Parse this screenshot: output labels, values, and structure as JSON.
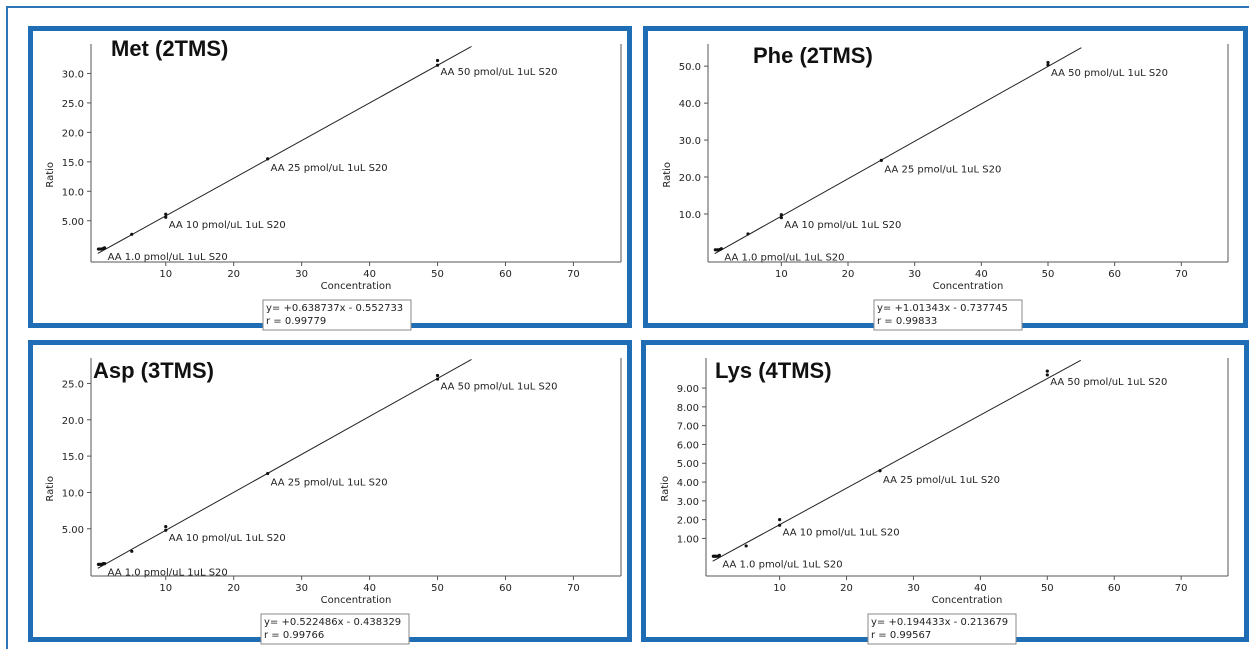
{
  "chart_data": [
    {
      "type": "scatter",
      "title": "Met (2TMS)",
      "xlabel": "Concentration",
      "ylabel": "Ratio",
      "xlim": [
        -1,
        77
      ],
      "ylim": [
        -2,
        35
      ],
      "xticks": [
        10,
        20,
        30,
        40,
        50,
        60,
        70
      ],
      "yticks": [
        5,
        10,
        15,
        20,
        25,
        30
      ],
      "ytick_labels": [
        "5.00",
        "10.0",
        "15.0",
        "20.0",
        "25.0",
        "30.0"
      ],
      "series": [
        {
          "x": [
            0.1,
            0.3,
            0.5,
            0.8,
            1.0,
            5.0,
            10.0,
            10.0,
            25.0,
            50.0,
            50.0
          ],
          "y": [
            0.2,
            0.2,
            0.2,
            0.3,
            0.4,
            2.7,
            5.6,
            6.1,
            15.5,
            31.4,
            32.2
          ]
        }
      ],
      "fit": {
        "slope": 0.638737,
        "intercept": -0.552733,
        "x_range": [
          0,
          55
        ]
      },
      "point_labels": [
        {
          "x": 1.0,
          "y": 0.4,
          "text": "AA 1.0 pmol/uL 1uL S20"
        },
        {
          "x": 10.0,
          "y": 5.8,
          "text": "AA 10 pmol/uL 1uL S20"
        },
        {
          "x": 25.0,
          "y": 15.5,
          "text": "AA 25 pmol/uL 1uL S20"
        },
        {
          "x": 50.0,
          "y": 31.8,
          "text": "AA 50 pmol/uL 1uL S20"
        }
      ],
      "equation": "y= +0.638737x - 0.552733",
      "r_value": "r = 0.99779"
    },
    {
      "type": "scatter",
      "title": "Phe (2TMS)",
      "xlabel": "Concentration",
      "ylabel": "Ratio",
      "xlim": [
        -1,
        77
      ],
      "ylim": [
        -3,
        56
      ],
      "xticks": [
        10,
        20,
        30,
        40,
        50,
        60,
        70
      ],
      "yticks": [
        10,
        20,
        30,
        40,
        50
      ],
      "ytick_labels": [
        "10.0",
        "20.0",
        "30.0",
        "40.0",
        "50.0"
      ],
      "series": [
        {
          "x": [
            0.1,
            0.3,
            0.5,
            0.8,
            1.0,
            5.0,
            10.0,
            10.0,
            25.0,
            50.0,
            50.0
          ],
          "y": [
            0.3,
            0.3,
            0.3,
            0.4,
            0.6,
            4.6,
            9.0,
            9.8,
            24.5,
            50.3,
            51.0
          ]
        }
      ],
      "fit": {
        "slope": 1.01343,
        "intercept": -0.737745,
        "x_range": [
          0,
          55
        ]
      },
      "point_labels": [
        {
          "x": 1.0,
          "y": 0.6,
          "text": "AA 1.0 pmol/uL 1uL S20"
        },
        {
          "x": 10.0,
          "y": 9.4,
          "text": "AA 10 pmol/uL 1uL S20"
        },
        {
          "x": 25.0,
          "y": 24.5,
          "text": "AA 25 pmol/uL 1uL S20"
        },
        {
          "x": 50.0,
          "y": 50.6,
          "text": "AA 50 pmol/uL 1uL S20"
        }
      ],
      "equation": "y= +1.01343x - 0.737745",
      "r_value": "r = 0.99833"
    },
    {
      "type": "scatter",
      "title": "Asp (3TMS)",
      "xlabel": "Concentration",
      "ylabel": "Ratio",
      "xlim": [
        -1,
        77
      ],
      "ylim": [
        -1.5,
        28.5
      ],
      "xticks": [
        10,
        20,
        30,
        40,
        50,
        60,
        70
      ],
      "yticks": [
        5,
        10,
        15,
        20,
        25
      ],
      "ytick_labels": [
        "5.00",
        "10.0",
        "15.0",
        "20.0",
        "25.0"
      ],
      "series": [
        {
          "x": [
            0.1,
            0.3,
            0.5,
            0.8,
            1.0,
            5.0,
            10.0,
            10.0,
            25.0,
            50.0,
            50.0
          ],
          "y": [
            0.1,
            0.1,
            0.1,
            0.2,
            0.2,
            1.9,
            4.8,
            5.3,
            12.6,
            25.6,
            26.1
          ]
        }
      ],
      "fit": {
        "slope": 0.522486,
        "intercept": -0.438329,
        "x_range": [
          0,
          55
        ]
      },
      "point_labels": [
        {
          "x": 1.0,
          "y": 0.2,
          "text": "AA 1.0 pmol/uL 1uL S20"
        },
        {
          "x": 10.0,
          "y": 5.0,
          "text": "AA 10 pmol/uL 1uL S20"
        },
        {
          "x": 25.0,
          "y": 12.6,
          "text": "AA 25 pmol/uL 1uL S20"
        },
        {
          "x": 50.0,
          "y": 25.8,
          "text": "AA 50 pmol/uL 1uL S20"
        }
      ],
      "equation": "y= +0.522486x - 0.438329",
      "r_value": "r = 0.99766"
    },
    {
      "type": "scatter",
      "title": "Lys (4TMS)",
      "xlabel": "Concentration",
      "ylabel": "Ratio",
      "xlim": [
        -1,
        77
      ],
      "ylim": [
        -1,
        10.6
      ],
      "xticks": [
        10,
        20,
        30,
        40,
        50,
        60,
        70
      ],
      "yticks": [
        1,
        2,
        3,
        4,
        5,
        6,
        7,
        8,
        9
      ],
      "ytick_labels": [
        "1.00",
        "2.00",
        "3.00",
        "4.00",
        "5.00",
        "6.00",
        "7.00",
        "8.00",
        "9.00"
      ],
      "series": [
        {
          "x": [
            0.1,
            0.3,
            0.5,
            0.8,
            1.0,
            5.0,
            10.0,
            10.0,
            25.0,
            50.0,
            50.0
          ],
          "y": [
            0.05,
            0.05,
            0.05,
            0.05,
            0.1,
            0.6,
            1.7,
            2.0,
            4.6,
            9.7,
            9.9
          ]
        }
      ],
      "fit": {
        "slope": 0.194433,
        "intercept": -0.213679,
        "x_range": [
          0,
          55
        ]
      },
      "point_labels": [
        {
          "x": 1.0,
          "y": 0.1,
          "text": "AA 1.0 pmol/uL 1uL S20"
        },
        {
          "x": 10.0,
          "y": 1.8,
          "text": "AA 10 pmol/uL 1uL S20"
        },
        {
          "x": 25.0,
          "y": 4.6,
          "text": "AA 25 pmol/uL 1uL S20"
        },
        {
          "x": 50.0,
          "y": 9.8,
          "text": "AA 50 pmol/uL 1uL S20"
        }
      ],
      "equation": "y= +0.194433x - 0.213679",
      "r_value": "r = 0.99567"
    }
  ]
}
